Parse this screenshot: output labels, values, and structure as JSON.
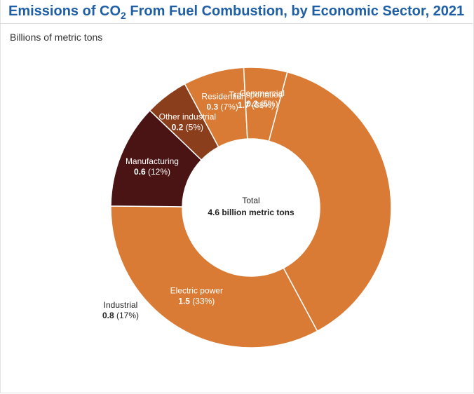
{
  "header": {
    "title_pre": "Emissions of CO",
    "title_sub": "2",
    "title_post": " From Fuel Combustion, by Economic Sector, 2021",
    "subtitle": "Billions of metric tons"
  },
  "chart_data": {
    "type": "pie",
    "variant": "donut",
    "unit": "Billions of metric tons",
    "center_label": {
      "line1": "Total",
      "line2": "4.6 billion metric tons"
    },
    "slices": [
      {
        "name": "Transportation",
        "value": 1.7,
        "percent": 38,
        "value_text": "1.7",
        "percent_text": "(38%)",
        "color": "#d97b35",
        "text_color": "#ffffff"
      },
      {
        "name": "Electric power",
        "value": 1.5,
        "percent": 33,
        "value_text": "1.5",
        "percent_text": "(33%)",
        "color": "#d97b35",
        "text_color": "#ffffff"
      },
      {
        "name": "Manufacturing",
        "value": 0.6,
        "percent": 12,
        "value_text": "0.6",
        "percent_text": "(12%)",
        "color": "#4a1414",
        "text_color": "#ffffff",
        "group": "Industrial"
      },
      {
        "name": "Other industrial",
        "value": 0.2,
        "percent": 5,
        "value_text": "0.2",
        "percent_text": "(5%)",
        "color": "#8b3e1c",
        "text_color": "#ffffff",
        "group": "Industrial"
      },
      {
        "name": "Residential",
        "value": 0.3,
        "percent": 7,
        "value_text": "0.3",
        "percent_text": "(7%)",
        "color": "#d97b35",
        "text_color": "#ffffff"
      },
      {
        "name": "Commercial",
        "value": 0.2,
        "percent": 5,
        "value_text": "0.2",
        "percent_text": "(5%)",
        "color": "#d97b35",
        "text_color": "#ffffff"
      }
    ],
    "group_label": {
      "name": "Industrial",
      "value_text": "0.8",
      "percent_text": "(17%)",
      "text_color": "#222222"
    },
    "colors": {
      "outline": "#ffffff"
    }
  }
}
